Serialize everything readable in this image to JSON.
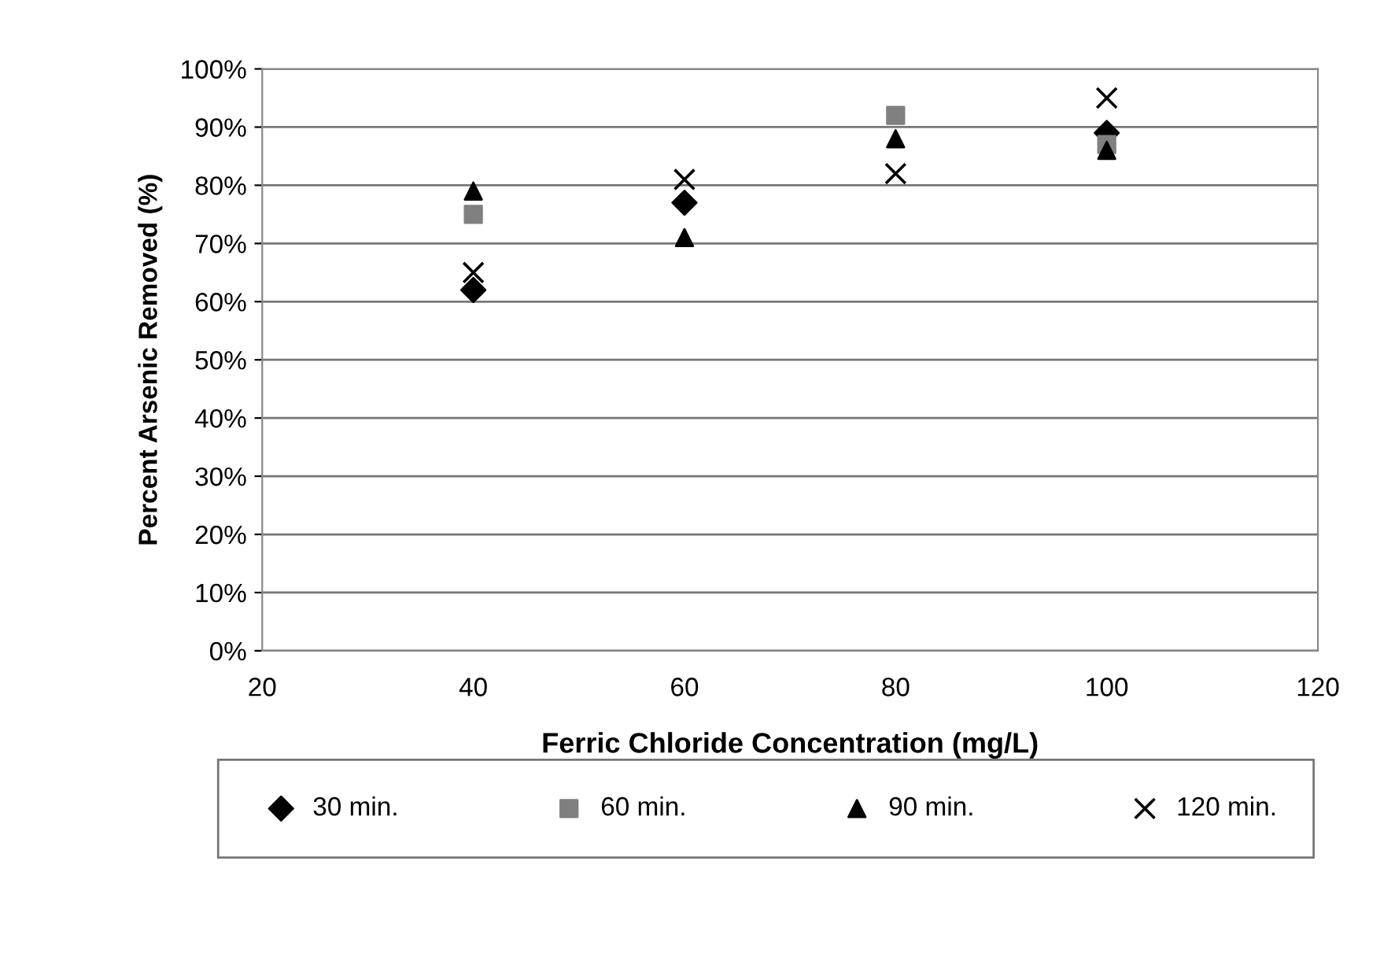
{
  "chart_data": {
    "type": "scatter",
    "xlabel": "Ferric Chloride Concentration (mg/L)",
    "ylabel": "Percent Arsenic Removed (%)",
    "x": [
      40,
      60,
      80,
      100
    ],
    "xlim": [
      20,
      120
    ],
    "xticks": [
      20,
      40,
      60,
      80,
      100,
      120
    ],
    "ylim": [
      0,
      100
    ],
    "yticks": [
      {
        "value": 0,
        "label": "0%"
      },
      {
        "value": 10,
        "label": "10%"
      },
      {
        "value": 20,
        "label": "20%"
      },
      {
        "value": 30,
        "label": "30%"
      },
      {
        "value": 40,
        "label": "40%"
      },
      {
        "value": 50,
        "label": "50%"
      },
      {
        "value": 60,
        "label": "60%"
      },
      {
        "value": 70,
        "label": "70%"
      },
      {
        "value": 80,
        "label": "80%"
      },
      {
        "value": 90,
        "label": "90%"
      },
      {
        "value": 100,
        "label": "100%"
      }
    ],
    "grid": "y",
    "legend": "bottom",
    "series": [
      {
        "name": "30 min.",
        "color": "#000000",
        "marker": "diamond",
        "values": [
          62,
          77,
          null,
          89
        ]
      },
      {
        "name": "60 min.",
        "color": "#808080",
        "marker": "square",
        "values": [
          75,
          null,
          92,
          87
        ]
      },
      {
        "name": "90 min.",
        "color": "#000000",
        "marker": "triangle",
        "values": [
          79,
          71,
          88,
          86
        ]
      },
      {
        "name": "120 min.",
        "color": "#000000",
        "marker": "cross",
        "values": [
          65,
          81,
          82,
          95
        ]
      }
    ]
  }
}
